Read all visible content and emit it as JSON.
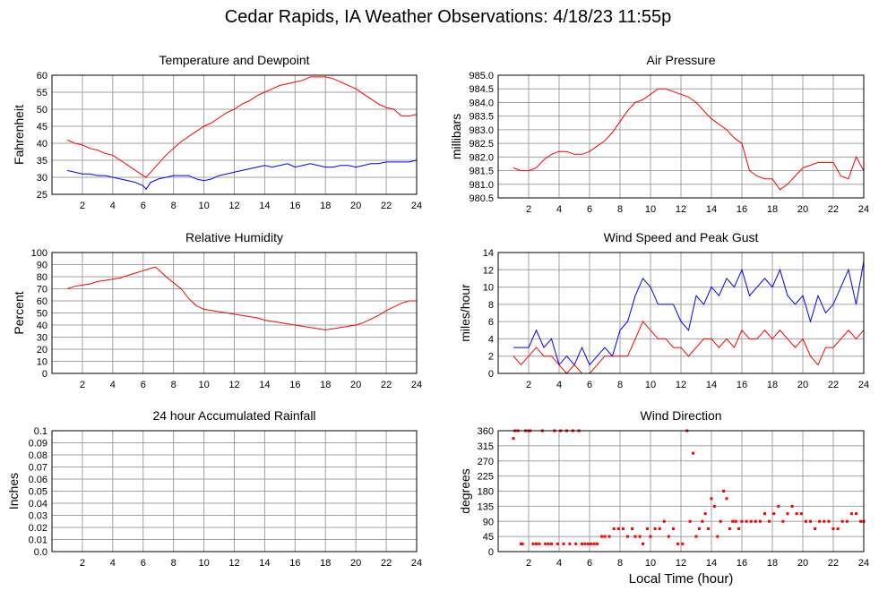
{
  "page": {
    "title": "Cedar Rapids, IA Weather Observations: 4/18/23 11:55p"
  },
  "colors": {
    "red": "#ff0000",
    "blue": "#0000ff",
    "grid": "#a0a0a0",
    "frame": "#000000"
  },
  "chart_data": [
    {
      "id": "temp",
      "type": "line",
      "title": "Temperature and Dewpoint",
      "ylabel": "Fahrenheit",
      "xlabel": "",
      "xlim": [
        0,
        24
      ],
      "ylim": [
        25,
        60
      ],
      "xticks": [
        2,
        4,
        6,
        8,
        10,
        12,
        14,
        16,
        18,
        20,
        22,
        24
      ],
      "yticks": [
        25,
        30,
        35,
        40,
        45,
        50,
        55,
        60
      ],
      "ytick_labels": [
        "25",
        "30",
        "35",
        "40",
        "45",
        "50",
        "55",
        "60"
      ],
      "grid": true,
      "series": [
        {
          "color": "#ff0000",
          "style": "line",
          "x": [
            1.0,
            1.5,
            2.0,
            2.5,
            3.0,
            3.5,
            4.0,
            4.5,
            5.0,
            5.5,
            6.0,
            6.2,
            6.5,
            7.0,
            7.5,
            8.0,
            8.5,
            9.0,
            9.5,
            10.0,
            10.5,
            11.0,
            11.5,
            12.0,
            12.5,
            13.0,
            13.5,
            14.0,
            14.5,
            15.0,
            15.5,
            16.0,
            16.5,
            17.0,
            17.5,
            18.0,
            18.5,
            19.0,
            19.5,
            20.0,
            20.5,
            21.0,
            21.5,
            22.0,
            22.5,
            23.0,
            23.5,
            24.0
          ],
          "y": [
            41,
            40,
            39.5,
            38.5,
            38,
            37,
            36.5,
            35,
            33.5,
            32,
            30.5,
            30,
            31.5,
            34,
            36.5,
            38.5,
            40.5,
            42,
            43.5,
            45,
            46,
            47.5,
            49,
            50,
            51.5,
            52.5,
            54,
            55,
            56,
            57,
            57.5,
            58,
            58.5,
            59.5,
            59.5,
            59.5,
            59,
            58,
            57,
            56,
            54.5,
            53,
            51.5,
            50.5,
            50,
            48,
            48,
            48.5
          ]
        },
        {
          "color": "#0000ff",
          "style": "line",
          "x": [
            1.0,
            1.5,
            2.0,
            2.5,
            3.0,
            3.5,
            4.0,
            4.5,
            5.0,
            5.5,
            6.0,
            6.2,
            6.5,
            7.0,
            7.5,
            8.0,
            8.5,
            9.0,
            9.5,
            10.0,
            10.5,
            11.0,
            11.5,
            12.0,
            12.5,
            13.0,
            13.5,
            14.0,
            14.5,
            15.0,
            15.5,
            16.0,
            16.5,
            17.0,
            17.5,
            18.0,
            18.5,
            19.0,
            19.5,
            20.0,
            20.5,
            21.0,
            21.5,
            22.0,
            22.5,
            23.0,
            23.5,
            24.0
          ],
          "y": [
            32,
            31.5,
            31,
            31,
            30.5,
            30.5,
            30,
            29.5,
            29,
            28.5,
            27.5,
            26.5,
            28.5,
            29.5,
            30,
            30.5,
            30.5,
            30.5,
            29.5,
            29,
            29.5,
            30.5,
            31,
            31.5,
            32,
            32.5,
            33,
            33.5,
            33,
            33.5,
            34,
            33,
            33.5,
            34,
            33.5,
            33,
            33,
            33.5,
            33.5,
            33,
            33.5,
            34,
            34,
            34.5,
            34.5,
            34.5,
            34.5,
            35
          ]
        }
      ]
    },
    {
      "id": "pressure",
      "type": "line",
      "title": "Air Pressure",
      "ylabel": "millibars",
      "xlabel": "",
      "xlim": [
        0,
        24
      ],
      "ylim": [
        980.5,
        985.0
      ],
      "xticks": [
        2,
        4,
        6,
        8,
        10,
        12,
        14,
        16,
        18,
        20,
        22,
        24
      ],
      "yticks": [
        980.5,
        981.0,
        981.5,
        982.0,
        982.5,
        983.0,
        983.5,
        984.0,
        984.5,
        985.0
      ],
      "ytick_labels": [
        "980.5",
        "981.0",
        "981.5",
        "982.0",
        "982.5",
        "983.0",
        "983.5",
        "984.0",
        "984.5",
        "985.0"
      ],
      "grid": true,
      "series": [
        {
          "color": "#ff0000",
          "style": "line",
          "x": [
            1.0,
            1.5,
            2.0,
            2.5,
            3.0,
            3.5,
            4.0,
            4.5,
            5.0,
            5.5,
            6.0,
            6.5,
            7.0,
            7.5,
            8.0,
            8.5,
            9.0,
            9.5,
            10.0,
            10.5,
            11.0,
            11.5,
            12.0,
            12.5,
            13.0,
            13.5,
            14.0,
            14.5,
            15.0,
            15.5,
            16.0,
            16.5,
            17.0,
            17.5,
            18.0,
            18.5,
            19.0,
            19.5,
            20.0,
            20.5,
            21.0,
            21.5,
            22.0,
            22.5,
            23.0,
            23.5,
            24.0
          ],
          "y": [
            981.6,
            981.5,
            981.5,
            981.6,
            981.9,
            982.1,
            982.2,
            982.2,
            982.1,
            982.1,
            982.2,
            982.4,
            982.6,
            982.9,
            983.3,
            983.7,
            984.0,
            984.1,
            984.3,
            984.5,
            984.5,
            984.4,
            984.3,
            984.2,
            984.0,
            983.7,
            983.4,
            983.2,
            983.0,
            982.7,
            982.5,
            981.5,
            981.3,
            981.2,
            981.2,
            980.8,
            981.0,
            981.3,
            981.6,
            981.7,
            981.8,
            981.8,
            981.8,
            981.3,
            981.2,
            982.0,
            981.5
          ]
        }
      ]
    },
    {
      "id": "humidity",
      "type": "line",
      "title": "Relative Humidity",
      "ylabel": "Percent",
      "xlabel": "",
      "xlim": [
        0,
        24
      ],
      "ylim": [
        0,
        100
      ],
      "xticks": [
        2,
        4,
        6,
        8,
        10,
        12,
        14,
        16,
        18,
        20,
        22,
        24
      ],
      "yticks": [
        0,
        10,
        20,
        30,
        40,
        50,
        60,
        70,
        80,
        90,
        100
      ],
      "ytick_labels": [
        "0",
        "10",
        "20",
        "30",
        "40",
        "50",
        "60",
        "70",
        "80",
        "90",
        "100"
      ],
      "grid": true,
      "series": [
        {
          "color": "#ff0000",
          "style": "line",
          "x": [
            1.0,
            1.5,
            2.0,
            2.5,
            3.0,
            3.5,
            4.0,
            4.5,
            5.0,
            5.5,
            6.0,
            6.5,
            6.8,
            7.0,
            7.5,
            8.0,
            8.5,
            9.0,
            9.5,
            10.0,
            10.5,
            11.0,
            11.5,
            12.0,
            12.5,
            13.0,
            13.5,
            14.0,
            14.5,
            15.0,
            15.5,
            16.0,
            16.5,
            17.0,
            17.5,
            18.0,
            18.5,
            19.0,
            19.5,
            20.0,
            20.5,
            21.0,
            21.5,
            22.0,
            22.5,
            23.0,
            23.5,
            24.0
          ],
          "y": [
            70,
            72,
            73,
            74,
            76,
            77,
            78,
            79,
            81,
            83,
            85,
            87,
            88,
            86,
            80,
            75,
            70,
            62,
            56,
            53,
            52,
            51,
            50,
            49,
            48,
            47,
            46,
            44,
            43,
            42,
            41,
            40,
            39,
            38,
            37,
            36,
            37,
            38,
            39,
            40,
            42,
            45,
            48,
            52,
            55,
            58,
            60,
            60
          ]
        }
      ]
    },
    {
      "id": "wind",
      "type": "line",
      "title": "Wind Speed and Peak Gust",
      "ylabel": "miles/hour",
      "xlabel": "",
      "xlim": [
        0,
        24
      ],
      "ylim": [
        0,
        14
      ],
      "xticks": [
        2,
        4,
        6,
        8,
        10,
        12,
        14,
        16,
        18,
        20,
        22,
        24
      ],
      "yticks": [
        0,
        2,
        4,
        6,
        8,
        10,
        12,
        14
      ],
      "ytick_labels": [
        "0",
        "2",
        "4",
        "6",
        "8",
        "10",
        "12",
        "14"
      ],
      "grid": true,
      "series": [
        {
          "color": "#0000ff",
          "style": "line",
          "x": [
            1.0,
            1.5,
            2.0,
            2.5,
            3.0,
            3.5,
            4.0,
            4.5,
            5.0,
            5.5,
            6.0,
            6.5,
            7.0,
            7.5,
            8.0,
            8.5,
            9.0,
            9.5,
            10.0,
            10.5,
            11.0,
            11.5,
            12.0,
            12.5,
            13.0,
            13.5,
            14.0,
            14.5,
            15.0,
            15.5,
            16.0,
            16.5,
            17.0,
            17.5,
            18.0,
            18.5,
            19.0,
            19.5,
            20.0,
            20.5,
            21.0,
            21.5,
            22.0,
            22.5,
            23.0,
            23.5,
            24.0
          ],
          "y": [
            3,
            3,
            3,
            5,
            3,
            4,
            1,
            2,
            1,
            3,
            1,
            2,
            3,
            2,
            5,
            6,
            9,
            11,
            10,
            8,
            8,
            8,
            6,
            5,
            9,
            8,
            10,
            9,
            11,
            10,
            12,
            9,
            10,
            11,
            10,
            12,
            9,
            8,
            9,
            6,
            9,
            7,
            8,
            10,
            12,
            8,
            13
          ]
        },
        {
          "color": "#ff0000",
          "style": "line",
          "x": [
            1.0,
            1.5,
            2.0,
            2.5,
            3.0,
            3.5,
            4.0,
            4.5,
            5.0,
            5.5,
            6.0,
            6.5,
            7.0,
            7.5,
            8.0,
            8.5,
            9.0,
            9.5,
            10.0,
            10.5,
            11.0,
            11.5,
            12.0,
            12.5,
            13.0,
            13.5,
            14.0,
            14.5,
            15.0,
            15.5,
            16.0,
            16.5,
            17.0,
            17.5,
            18.0,
            18.5,
            19.0,
            19.5,
            20.0,
            20.5,
            21.0,
            21.5,
            22.0,
            22.5,
            23.0,
            23.5,
            24.0
          ],
          "y": [
            2,
            1,
            2,
            3,
            2,
            2,
            1,
            0,
            1,
            0,
            0,
            1,
            2,
            2,
            2,
            2,
            4,
            6,
            5,
            4,
            4,
            3,
            3,
            2,
            3,
            4,
            4,
            3,
            4,
            3,
            5,
            4,
            4,
            5,
            4,
            5,
            4,
            3,
            4,
            2,
            1,
            3,
            3,
            4,
            5,
            4,
            5
          ]
        }
      ]
    },
    {
      "id": "rain",
      "type": "line",
      "title": "24 hour Accumulated Rainfall",
      "ylabel": "Inches",
      "xlabel": "",
      "xlim": [
        0,
        24
      ],
      "ylim": [
        0,
        0.1
      ],
      "xticks": [
        2,
        4,
        6,
        8,
        10,
        12,
        14,
        16,
        18,
        20,
        22,
        24
      ],
      "yticks": [
        0,
        0.01,
        0.02,
        0.03,
        0.04,
        0.05,
        0.06,
        0.07,
        0.08,
        0.09,
        0.1
      ],
      "ytick_labels": [
        "0.0",
        "0.01",
        "0.02",
        "0.03",
        "0.04",
        "0.05",
        "0.06",
        "0.07",
        "0.08",
        "0.09",
        "0.1"
      ],
      "grid": true,
      "series": [
        {
          "color": "#ff0000",
          "style": "line",
          "x": [
            1.0,
            24.0
          ],
          "y": [
            0,
            0
          ]
        }
      ]
    },
    {
      "id": "direction",
      "type": "scatter",
      "title": "Wind Direction",
      "ylabel": "degrees",
      "xlabel": "Local Time (hour)",
      "xlim": [
        0,
        24
      ],
      "ylim": [
        0,
        360
      ],
      "xticks": [
        2,
        4,
        6,
        8,
        10,
        12,
        14,
        16,
        18,
        20,
        22,
        24
      ],
      "yticks": [
        0,
        45,
        90,
        135,
        180,
        225,
        270,
        315,
        360
      ],
      "ytick_labels": [
        "0",
        "45",
        "90",
        "135",
        "180",
        "225",
        "270",
        "315",
        "360"
      ],
      "grid": true,
      "series": [
        {
          "color": "#ff0000",
          "style": "points",
          "x": [
            1.0,
            1.1,
            1.3,
            1.5,
            1.6,
            1.8,
            2.0,
            2.1,
            2.3,
            2.5,
            2.7,
            2.9,
            3.1,
            3.3,
            3.5,
            3.7,
            3.9,
            4.1,
            4.3,
            4.5,
            4.7,
            4.9,
            5.1,
            5.3,
            5.5,
            5.7,
            5.9,
            6.1,
            6.3,
            6.5,
            6.8,
            7.0,
            7.3,
            7.6,
            7.9,
            8.2,
            8.5,
            8.8,
            9.0,
            9.3,
            9.5,
            9.8,
            10.0,
            10.3,
            10.6,
            10.9,
            11.2,
            11.5,
            11.8,
            12.1,
            12.4,
            12.6,
            12.8,
            13.0,
            13.2,
            13.4,
            13.6,
            13.8,
            14.0,
            14.2,
            14.4,
            14.6,
            14.8,
            15.0,
            15.2,
            15.4,
            15.6,
            15.8,
            16.0,
            16.3,
            16.6,
            16.9,
            17.2,
            17.5,
            17.8,
            18.1,
            18.4,
            18.7,
            19.0,
            19.3,
            19.6,
            19.9,
            20.2,
            20.5,
            20.8,
            21.1,
            21.4,
            21.7,
            22.0,
            22.3,
            22.6,
            22.9,
            23.2,
            23.5,
            23.8,
            24.0
          ],
          "y": [
            337,
            360,
            360,
            23,
            23,
            360,
            360,
            360,
            23,
            23,
            23,
            360,
            23,
            23,
            23,
            360,
            23,
            360,
            23,
            360,
            23,
            360,
            23,
            360,
            23,
            23,
            23,
            23,
            23,
            23,
            45,
            45,
            45,
            68,
            68,
            68,
            45,
            68,
            45,
            45,
            23,
            68,
            45,
            68,
            68,
            90,
            45,
            68,
            23,
            23,
            360,
            90,
            293,
            45,
            68,
            90,
            113,
            68,
            158,
            135,
            45,
            90,
            180,
            158,
            68,
            90,
            90,
            68,
            90,
            90,
            90,
            90,
            90,
            113,
            90,
            113,
            135,
            90,
            113,
            135,
            113,
            113,
            90,
            90,
            68,
            90,
            90,
            90,
            68,
            68,
            90,
            90,
            113,
            113,
            90,
            90
          ]
        }
      ]
    }
  ]
}
